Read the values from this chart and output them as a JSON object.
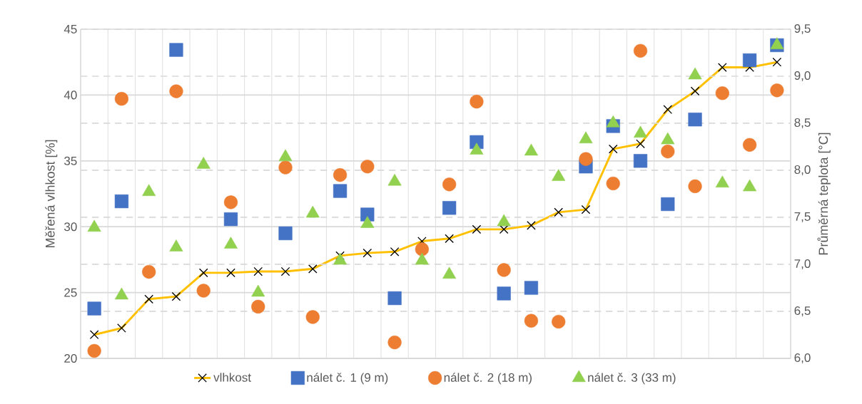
{
  "chart_data": {
    "type": "line",
    "ylabel": "Měřená vlhkost [%]",
    "y2label": "Průměrná teplota [°C]",
    "categories": [
      null,
      null,
      null,
      null,
      null,
      null,
      null,
      null,
      null,
      null,
      null,
      null,
      null,
      null,
      null,
      null,
      null,
      null,
      null,
      null,
      null,
      null,
      null,
      null,
      null,
      null
    ],
    "series": [
      {
        "name": "vlhkost",
        "color": "#ffc000",
        "marker": "cross",
        "line_style": "solid",
        "values": [
          21.8,
          22.3,
          24.5,
          24.7,
          26.5,
          26.5,
          26.6,
          26.6,
          26.8,
          27.8,
          28.0,
          28.1,
          28.9,
          29.1,
          29.8,
          29.8,
          30.1,
          31.1,
          31.3,
          35.9,
          36.3,
          38.9,
          40.3,
          42.1,
          42.1,
          42.5
        ]
      },
      {
        "name": "nálet č. 1 (9 m)",
        "type": "scatter",
        "axis": "y2",
        "color": "#4472c4",
        "marker": "square",
        "values": [
          6.53,
          7.67,
          null,
          9.28,
          null,
          7.48,
          null,
          7.33,
          null,
          7.78,
          7.53,
          6.64,
          null,
          7.6,
          8.3,
          6.69,
          6.75,
          null,
          8.04,
          8.47,
          8.1,
          7.64,
          8.54,
          null,
          9.17,
          9.33
        ]
      },
      {
        "name": "nálet č. 2 (18 m)",
        "type": "scatter",
        "axis": "y2",
        "color": "#ed7d31",
        "marker": "circle",
        "values": [
          6.08,
          8.76,
          6.92,
          8.84,
          6.72,
          7.66,
          6.55,
          8.03,
          6.44,
          7.95,
          8.04,
          6.17,
          7.16,
          7.85,
          8.73,
          6.94,
          6.4,
          6.39,
          8.12,
          7.86,
          9.27,
          8.2,
          7.83,
          8.82,
          8.27,
          8.85
        ]
      },
      {
        "name": "nálet č. 3 (33 m)",
        "type": "scatter",
        "axis": "y2",
        "color": "#92d050",
        "marker": "triangle",
        "values": [
          7.39,
          6.67,
          7.77,
          7.18,
          8.06,
          7.21,
          6.7,
          8.14,
          7.54,
          7.04,
          7.43,
          7.88,
          7.04,
          6.89,
          8.21,
          7.45,
          8.2,
          7.93,
          8.33,
          8.5,
          8.39,
          8.32,
          9.01,
          7.86,
          7.82,
          9.33
        ]
      }
    ],
    "ylim": [
      20,
      45
    ],
    "yticks": [
      20,
      25,
      30,
      35,
      40,
      45
    ],
    "y2lim": [
      6.0,
      9.5
    ],
    "y2ticks": [
      {
        "value": 6.0,
        "label": "6,0"
      },
      {
        "value": 6.5,
        "label": "6,5"
      },
      {
        "value": 7.0,
        "label": "7,0"
      },
      {
        "value": 7.5,
        "label": "7,5"
      },
      {
        "value": 8.0,
        "label": "8,0"
      },
      {
        "value": 8.5,
        "label": "8,5"
      },
      {
        "value": 9.0,
        "label": "9,0"
      },
      {
        "value": 9.5,
        "label": "9,5"
      }
    ],
    "grid": true,
    "legend": "bottom"
  }
}
